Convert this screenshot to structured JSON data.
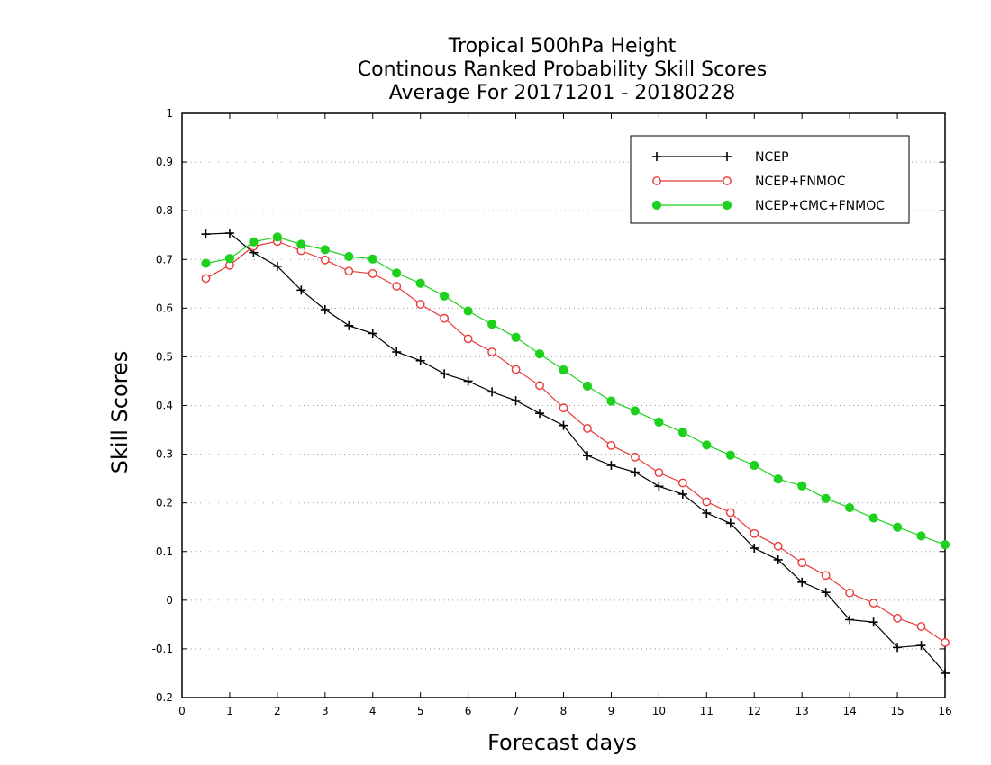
{
  "chart_data": {
    "type": "line",
    "title_lines": [
      "Tropical 500hPa Height",
      "Continous Ranked Probability Skill Scores",
      "Average For 20171201 - 20180228"
    ],
    "xlabel": "Forecast days",
    "ylabel": "Skill Scores",
    "xlim": [
      0,
      16
    ],
    "ylim": [
      -0.2,
      1
    ],
    "x_ticks": [
      0,
      1,
      2,
      3,
      4,
      5,
      6,
      7,
      8,
      9,
      10,
      11,
      12,
      13,
      14,
      15,
      16
    ],
    "x_tick_labels": [
      "0",
      "1",
      "2",
      "3",
      "4",
      "5",
      "6",
      "7",
      "8",
      "9",
      "10",
      "11",
      "12",
      "13",
      "14",
      "15",
      "16"
    ],
    "y_ticks": [
      -0.2,
      -0.1,
      0,
      0.1,
      0.2,
      0.3,
      0.4,
      0.5,
      0.6,
      0.7,
      0.8,
      0.9,
      1
    ],
    "y_tick_labels": [
      "-0.2",
      "-0.1",
      "0",
      "0.1",
      "0.2",
      "0.3",
      "0.4",
      "0.5",
      "0.6",
      "0.7",
      "0.8",
      "0.9",
      "1"
    ],
    "grid": "horizontal dotted",
    "legend_position": "top-right",
    "x": [
      0.5,
      1,
      1.5,
      2,
      2.5,
      3,
      3.5,
      4,
      4.5,
      5,
      5.5,
      6,
      6.5,
      7,
      7.5,
      8,
      8.5,
      9,
      9.5,
      10,
      10.5,
      11,
      11.5,
      12,
      12.5,
      13,
      13.5,
      14,
      14.5,
      15,
      15.5,
      16
    ],
    "series": [
      {
        "name": "NCEP",
        "color": "#000000",
        "marker": "plus",
        "values": [
          0.752,
          0.754,
          0.714,
          0.686,
          0.637,
          0.597,
          0.564,
          0.548,
          0.51,
          0.492,
          0.465,
          0.45,
          0.428,
          0.41,
          0.384,
          0.359,
          0.297,
          0.277,
          0.263,
          0.234,
          0.218,
          0.179,
          0.158,
          0.107,
          0.083,
          0.037,
          0.016,
          -0.04,
          -0.045,
          -0.097,
          -0.093,
          -0.15
        ]
      },
      {
        "name": "NCEP+FNMOC",
        "color": "#e83a3a",
        "marker": "open-circle",
        "values": [
          0.661,
          0.688,
          0.727,
          0.737,
          0.718,
          0.699,
          0.676,
          0.671,
          0.645,
          0.608,
          0.579,
          0.537,
          0.51,
          0.474,
          0.441,
          0.395,
          0.353,
          0.318,
          0.294,
          0.262,
          0.241,
          0.202,
          0.18,
          0.137,
          0.111,
          0.077,
          0.051,
          0.015,
          -0.006,
          -0.037,
          -0.054,
          -0.087
        ]
      },
      {
        "name": "NCEP+CMC+FNMOC",
        "color": "#1ed11e",
        "marker": "filled-circle",
        "values": [
          0.692,
          0.702,
          0.736,
          0.746,
          0.731,
          0.72,
          0.706,
          0.701,
          0.672,
          0.651,
          0.625,
          0.594,
          0.567,
          0.54,
          0.506,
          0.473,
          0.44,
          0.409,
          0.389,
          0.366,
          0.345,
          0.319,
          0.298,
          0.277,
          0.249,
          0.235,
          0.209,
          0.19,
          0.169,
          0.15,
          0.132,
          0.114
        ]
      }
    ]
  }
}
